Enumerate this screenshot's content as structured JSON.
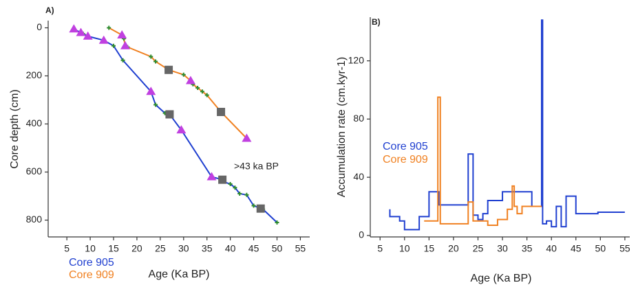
{
  "chart_data": [
    {
      "type": "line",
      "title": "A)",
      "xlabel": "Age (Ka BP)",
      "ylabel": "Core depth (cm)",
      "annotation": ">43 ka BP",
      "xlim": [
        1,
        57
      ],
      "ylim": [
        -30,
        870
      ],
      "yinverted": true,
      "xticks": [
        5,
        10,
        15,
        20,
        25,
        30,
        35,
        40,
        45,
        50,
        55
      ],
      "yticks": [
        0,
        200,
        400,
        600,
        800
      ],
      "point_color": "#2e8b2e",
      "series": [
        {
          "name": "Core 905",
          "color": "#1f3fd0",
          "x": [
            6.5,
            8,
            8.5,
            9.5,
            12.9,
            15,
            17,
            23,
            24,
            26,
            27,
            29.5,
            36,
            38,
            38.5,
            40,
            41,
            42,
            43.5,
            45,
            47,
            50
          ],
          "values": [
            5,
            20,
            25,
            35,
            52,
            75,
            135,
            265,
            320,
            355,
            360,
            425,
            620,
            630,
            640,
            650,
            665,
            690,
            695,
            740,
            755,
            810
          ]
        },
        {
          "name": "Core 909",
          "color": "#f08020",
          "x": [
            14,
            16.8,
            17.2,
            17.5,
            18,
            23,
            24,
            26.8,
            30,
            31.5,
            32,
            33,
            34,
            35,
            38,
            43.5
          ],
          "values": [
            0,
            30,
            45,
            75,
            80,
            120,
            140,
            175,
            195,
            220,
            235,
            250,
            265,
            280,
            350,
            460
          ]
        },
        {
          "marker": "triangle",
          "color": "#c040e0",
          "x": [
            6.5,
            8,
            9.5,
            12.9,
            16.8,
            17.5,
            23,
            29.5,
            31.5,
            36,
            43.5
          ],
          "values": [
            5,
            20,
            35,
            52,
            30,
            75,
            265,
            425,
            220,
            620,
            460
          ]
        },
        {
          "marker": "square",
          "color": "#666666",
          "x": [
            26.8,
            27,
            38,
            38.3,
            46.5
          ],
          "values": [
            175,
            360,
            350,
            632,
            752
          ]
        }
      ]
    },
    {
      "type": "line",
      "title": "B)",
      "xlabel": "Age (Ka BP)",
      "ylabel": "Accumulation rate (cm.kyr-1)",
      "xlim": [
        3,
        56
      ],
      "ylim": [
        -1,
        150
      ],
      "xticks": [
        5,
        10,
        15,
        20,
        25,
        30,
        35,
        40,
        45,
        50,
        55
      ],
      "yticks": [
        0,
        40,
        80,
        120
      ],
      "series": [
        {
          "name": "Core 905",
          "color": "#1f3fd0",
          "x": [
            7,
            7,
            9,
            9,
            10,
            10,
            13,
            13,
            15,
            15,
            17,
            17,
            23,
            23,
            24,
            24,
            25,
            25,
            26,
            26,
            27,
            27,
            30,
            30,
            36,
            36,
            38,
            38,
            38.2,
            38.2,
            39,
            39,
            40,
            40,
            41,
            41,
            42,
            42,
            43,
            43,
            45,
            45,
            49.5,
            49.5,
            55
          ],
          "values": [
            18,
            13,
            13,
            10,
            10,
            4,
            4,
            13,
            13,
            30,
            30,
            21,
            21,
            56,
            56,
            14,
            14,
            11,
            11,
            15,
            15,
            24,
            24,
            30,
            30,
            20,
            20,
            148,
            148,
            8,
            8,
            10,
            10,
            6,
            6,
            20,
            20,
            6,
            6,
            27,
            27,
            15,
            15,
            16,
            16
          ]
        },
        {
          "name": "Core 909",
          "color": "#f08020",
          "x": [
            14,
            16.8,
            16.8,
            17.3,
            17.3,
            23,
            23,
            24,
            24,
            27,
            27,
            29,
            29,
            31,
            31,
            32,
            32,
            32.4,
            32.4,
            33,
            33,
            34,
            34,
            38
          ],
          "values": [
            10,
            10,
            95,
            95,
            8,
            8,
            23,
            23,
            10,
            10,
            7,
            7,
            11,
            11,
            18,
            18,
            34,
            34,
            20,
            20,
            15,
            15,
            20,
            20
          ]
        }
      ]
    }
  ]
}
